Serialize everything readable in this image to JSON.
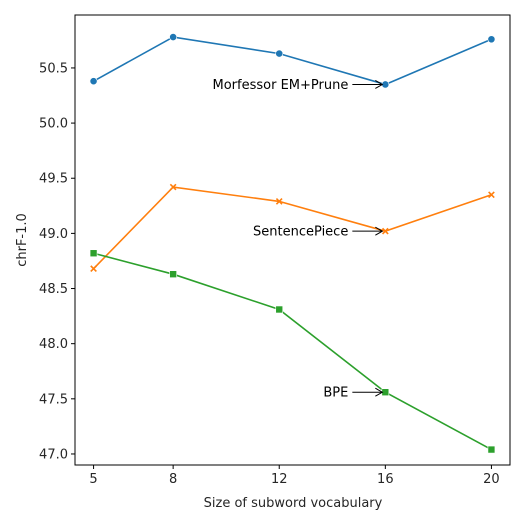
{
  "chart_data": {
    "type": "line",
    "title": "",
    "xlabel": "Size of subword vocabulary",
    "ylabel": "chrF-1.0",
    "x": [
      5,
      8,
      12,
      16,
      20
    ],
    "x_tick_labels": [
      "5",
      "8",
      "12",
      "16",
      "20"
    ],
    "y_ticks": [
      47.0,
      47.5,
      48.0,
      48.5,
      49.0,
      49.5,
      50.0,
      50.5
    ],
    "y_tick_labels": [
      "47.0",
      "47.5",
      "48.0",
      "48.5",
      "49.0",
      "49.5",
      "50.0",
      "50.5"
    ],
    "xlim": [
      4.3,
      20.7
    ],
    "ylim": [
      46.9,
      50.98
    ],
    "grid": false,
    "legend": "none",
    "series": [
      {
        "values": [
          50.38,
          50.78,
          50.63,
          50.35,
          50.76
        ],
        "color": "#1f77b4",
        "marker": "circle"
      },
      {
        "values": [
          48.68,
          49.42,
          49.29,
          49.02,
          49.35
        ],
        "color": "#ff7f0e",
        "marker": "x"
      },
      {
        "values": [
          48.82,
          48.63,
          48.31,
          47.56,
          47.04
        ],
        "color": "#2ca02c",
        "marker": "square"
      }
    ],
    "annotations": [
      {
        "text": "Morfessor EM+Prune",
        "x": 16,
        "y": 50.35
      },
      {
        "text": "SentencePiece",
        "x": 16,
        "y": 49.02
      },
      {
        "text": "BPE",
        "x": 16,
        "y": 47.56
      }
    ]
  }
}
